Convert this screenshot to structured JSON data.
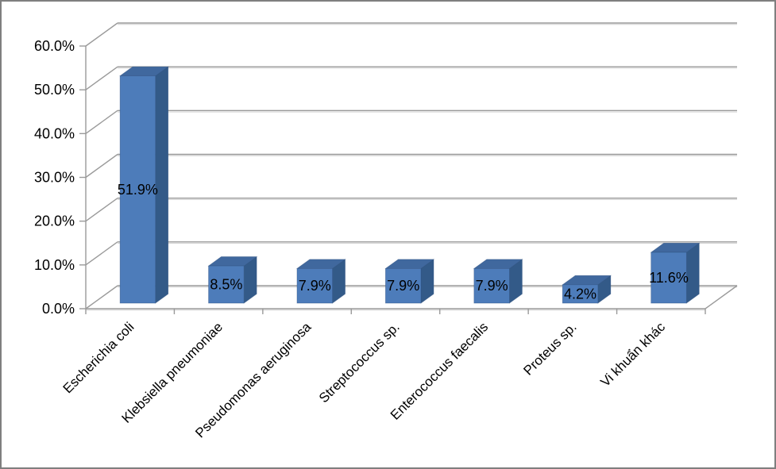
{
  "figure": {
    "background": "#ffffff",
    "border_color": "#7f7f7f"
  },
  "chart_data": {
    "type": "bar",
    "style": "3d-column",
    "title": "",
    "xlabel": "",
    "ylabel": "",
    "categories": [
      "Escherichia coli",
      "Klebsiella pneumoniae",
      "Pseudomonas aeruginosa",
      "Streptococcus sp.",
      "Enterococcus faecalis",
      "Proteus sp.",
      "Vi khuẩn khác"
    ],
    "values": [
      51.9,
      8.5,
      7.9,
      7.9,
      7.9,
      4.2,
      11.6
    ],
    "data_labels": [
      "51.9%",
      "8.5%",
      "7.9%",
      "7.9%",
      "7.9%",
      "4.2%",
      "11.6%"
    ],
    "ylim": [
      0,
      60
    ],
    "ytick_step": 10,
    "ytick_labels": [
      "0.0%",
      "10.0%",
      "20.0%",
      "30.0%",
      "40.0%",
      "50.0%",
      "60.0%"
    ],
    "grid": true,
    "legend": false,
    "colors": {
      "bar_front": "#4d7cba",
      "bar_top": "#40689e",
      "bar_side": "#335a88",
      "bar_edge": "#2e5180",
      "gridline": "#9a9a9a",
      "gridline_light": "#d4d4d4",
      "axis": "#9a9a9a",
      "label_text": "#000000"
    }
  }
}
